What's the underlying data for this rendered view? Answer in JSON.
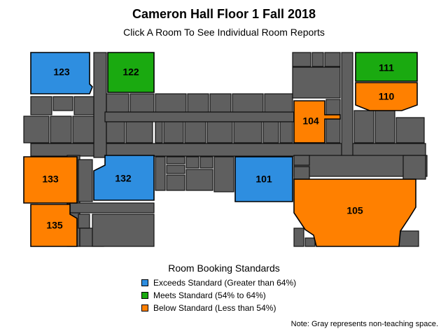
{
  "header": {
    "title": "Cameron Hall Floor 1 Fall 2018",
    "subtitle": "Click A Room To See Individual Room Reports"
  },
  "colors": {
    "exceeds": "#2e8ee0",
    "meets": "#1aaa10",
    "below": "#ff8000",
    "non_teaching": "#5f5f5f"
  },
  "rooms": [
    {
      "id": "123",
      "label": "123",
      "status": "exceeds"
    },
    {
      "id": "122",
      "label": "122",
      "status": "meets"
    },
    {
      "id": "111",
      "label": "111",
      "status": "meets"
    },
    {
      "id": "110",
      "label": "110",
      "status": "below"
    },
    {
      "id": "104",
      "label": "104",
      "status": "below"
    },
    {
      "id": "133",
      "label": "133",
      "status": "below"
    },
    {
      "id": "132",
      "label": "132",
      "status": "exceeds"
    },
    {
      "id": "101",
      "label": "101",
      "status": "exceeds"
    },
    {
      "id": "135",
      "label": "135",
      "status": "below"
    },
    {
      "id": "105",
      "label": "105",
      "status": "below"
    }
  ],
  "legend": {
    "title": "Room Booking Standards",
    "items": [
      {
        "label": "Exceeds Standard (Greater than 64%)",
        "status": "exceeds"
      },
      {
        "label": "Meets Standard (54% to 64%)",
        "status": "meets"
      },
      {
        "label": "Below Standard (Less than 54%)",
        "status": "below"
      }
    ]
  },
  "note": "Note: Gray represents non-teaching space."
}
